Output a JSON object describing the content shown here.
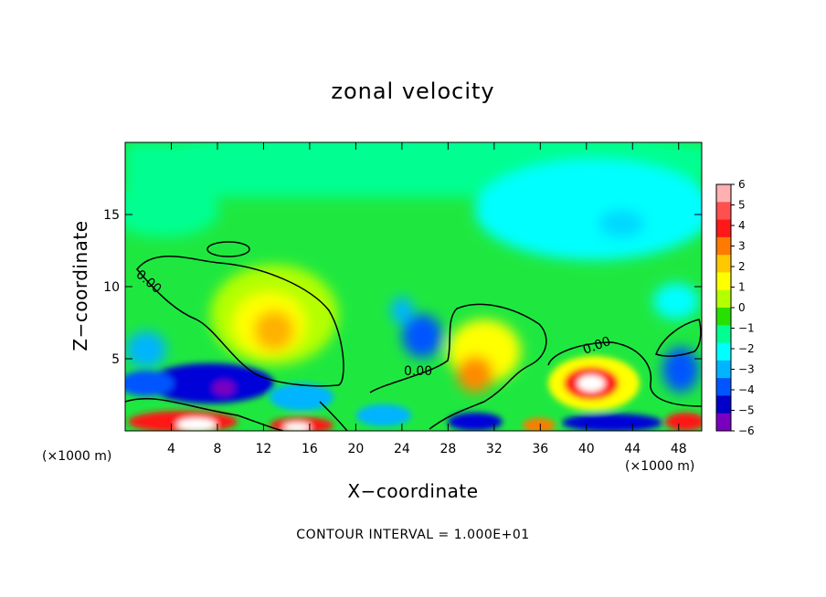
{
  "chart_data": {
    "type": "heatmap",
    "title": "zonal velocity",
    "xlabel": "X−coordinate",
    "ylabel": "Z−coordinate",
    "x_unit_label": "(×1000 m)",
    "footer": "CONTOUR INTERVAL = 1.000E+01",
    "contour_label": "0.00",
    "xlim": [
      0,
      50
    ],
    "ylim": [
      0,
      20
    ],
    "x_ticks": [
      4,
      8,
      12,
      16,
      20,
      24,
      28,
      32,
      36,
      40,
      44,
      48
    ],
    "y_ticks": [
      5,
      10,
      15
    ],
    "colorbar": {
      "ticks": [
        6,
        5,
        4,
        3,
        2,
        1,
        0,
        -1,
        -2,
        -3,
        -4,
        -5,
        -6
      ],
      "tick_labels": [
        "6",
        "5",
        "4",
        "3",
        "2",
        "1",
        "0",
        "−1",
        "−2",
        "−3",
        "−4",
        "−5",
        "−6"
      ],
      "colors": [
        "#ffb0b0",
        "#ff5050",
        "#ff1818",
        "#ff7a00",
        "#ffc800",
        "#ffff00",
        "#b4ff00",
        "#28e000",
        "#00ff90",
        "#00ffff",
        "#00b4ff",
        "#0055ff",
        "#0000c8",
        "#7a00c0"
      ]
    },
    "background_color": "#1ee840"
  }
}
